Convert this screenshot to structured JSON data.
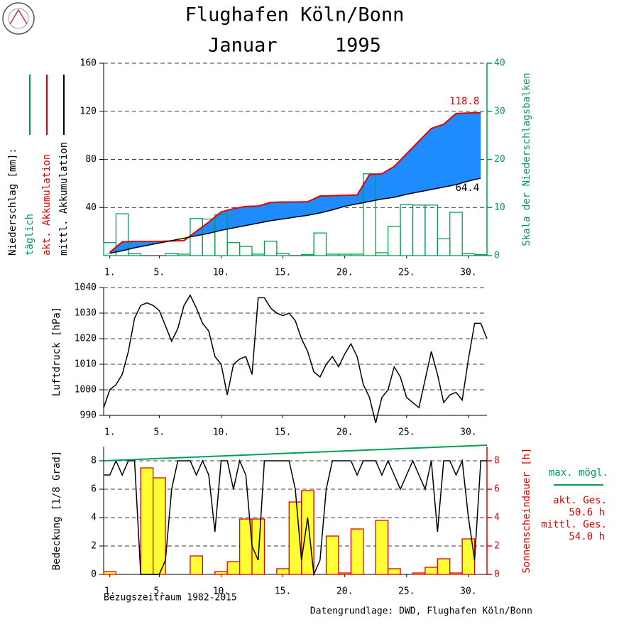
{
  "title": [
    "Flughafen Köln/Bonn",
    "Januar     1995"
  ],
  "footer": {
    "left": "Bezugszeitraum 1982-2015",
    "right": "Datengrundlage: DWD, Flughafen Köln/Bonn"
  },
  "chart_data": [
    {
      "type": "combo",
      "ylabel": "Niederschlag [mm]:",
      "y2label": "Skala der Niederschlagsbalken",
      "y2color": "#00a050",
      "xlim": [
        0.5,
        31.5
      ],
      "xticks": [
        {
          "value": 1,
          "label": "1."
        },
        {
          "value": 5,
          "label": "5."
        },
        {
          "value": 10,
          "label": "10."
        },
        {
          "value": 15,
          "label": "15."
        },
        {
          "value": 20,
          "label": "20."
        },
        {
          "value": 25,
          "label": "25."
        },
        {
          "value": 30,
          "label": "30."
        }
      ],
      "ylim": [
        0,
        160
      ],
      "yticks": [
        40,
        80,
        120,
        160
      ],
      "y2lim": [
        0,
        40
      ],
      "y2ticks": [
        0,
        10,
        20,
        30,
        40
      ],
      "grid": true,
      "legend": "left",
      "area_colors": {
        "above": "#1e8cff",
        "below": "#ffff00"
      },
      "series": [
        {
          "name": "täglich",
          "kind": "bar",
          "axis": "y2",
          "color": "#00a050",
          "fill": "none",
          "x": [
            1,
            2,
            3,
            4,
            5,
            6,
            7,
            8,
            9,
            10,
            11,
            12,
            13,
            14,
            15,
            16,
            17,
            18,
            19,
            20,
            21,
            22,
            23,
            24,
            25,
            26,
            27,
            28,
            29,
            30,
            31
          ],
          "values": [
            2.7,
            8.7,
            0.4,
            0,
            0,
            0.4,
            0.3,
            7.7,
            7.6,
            8.5,
            2.7,
            1.9,
            0.3,
            3.0,
            0.4,
            0,
            0.2,
            4.7,
            0.3,
            0.3,
            0.3,
            17.0,
            0.6,
            6.1,
            10.6,
            10.5,
            10.5,
            3.5,
            9.0,
            0.4,
            0.2
          ]
        },
        {
          "name": "akt. Akkumulation",
          "kind": "line",
          "color": "#e00000",
          "end_label": "above",
          "x": [
            1,
            2,
            3,
            4,
            5,
            6,
            7,
            8,
            9,
            10,
            11,
            12,
            13,
            14,
            15,
            16,
            17,
            18,
            19,
            20,
            21,
            22,
            23,
            24,
            25,
            26,
            27,
            28,
            29,
            30,
            31
          ],
          "values": [
            2.7,
            11.4,
            11.8,
            11.8,
            11.8,
            12.2,
            12.5,
            20.2,
            27.8,
            36.3,
            39.0,
            40.9,
            41.2,
            44.2,
            44.6,
            44.6,
            44.8,
            49.5,
            49.8,
            50.1,
            50.4,
            67.4,
            68.0,
            74.1,
            84.7,
            95.2,
            105.7,
            109.2,
            118.2,
            118.6,
            118.8
          ]
        },
        {
          "name": "mittl. Akkumulation",
          "kind": "line",
          "color": "#000000",
          "end_label": "below",
          "x": [
            1,
            2,
            3,
            4,
            5,
            6,
            7,
            8,
            9,
            10,
            11,
            12,
            13,
            14,
            15,
            16,
            17,
            18,
            19,
            20,
            21,
            22,
            23,
            24,
            25,
            26,
            27,
            28,
            29,
            30,
            31
          ],
          "values": [
            2,
            4,
            6.5,
            8.5,
            10.5,
            12.5,
            14.5,
            16.5,
            18.5,
            21,
            23,
            25,
            27,
            29,
            30.5,
            32,
            33.5,
            35.5,
            38,
            41,
            43,
            45,
            47,
            48.5,
            51,
            53,
            55,
            57,
            59,
            62,
            64.4
          ]
        }
      ]
    },
    {
      "type": "line",
      "ylabel": "Luftdruck [hPa]",
      "xlim": [
        0.5,
        31.5
      ],
      "xticks": [
        {
          "value": 1,
          "label": "1."
        },
        {
          "value": 5,
          "label": "5."
        },
        {
          "value": 10,
          "label": "10."
        },
        {
          "value": 15,
          "label": "15."
        },
        {
          "value": 20,
          "label": "20."
        },
        {
          "value": 25,
          "label": "25."
        },
        {
          "value": 30,
          "label": "30."
        }
      ],
      "ylim": [
        990,
        1040
      ],
      "yticks": [
        990,
        1000,
        1010,
        1020,
        1030,
        1040
      ],
      "grid": true,
      "series": [
        {
          "kind": "line",
          "color": "#000000",
          "x": [
            0.5,
            1,
            1.5,
            2,
            2.5,
            3,
            3.5,
            4,
            4.5,
            5,
            5.5,
            6,
            6.5,
            7,
            7.5,
            8,
            8.5,
            9,
            9.5,
            10,
            10.5,
            11,
            11.5,
            12,
            12.5,
            13,
            13.5,
            14,
            14.5,
            15,
            15.5,
            16,
            16.5,
            17,
            17.5,
            18,
            18.5,
            19,
            19.5,
            20,
            20.5,
            21,
            21.5,
            22,
            22.5,
            23,
            23.5,
            24,
            24.5,
            25,
            25.5,
            26,
            26.5,
            27,
            27.5,
            28,
            28.5,
            29,
            29.5,
            30,
            30.5,
            31,
            31.5
          ],
          "values": [
            993,
            1000,
            1002,
            1006,
            1015,
            1028,
            1033,
            1034,
            1033,
            1031,
            1025,
            1019,
            1024,
            1033,
            1037,
            1032,
            1026,
            1023,
            1013,
            1010,
            998,
            1010,
            1012,
            1013,
            1006,
            1036,
            1036,
            1032,
            1030,
            1029,
            1030,
            1027,
            1020,
            1015,
            1007,
            1005,
            1010,
            1013,
            1009,
            1014,
            1018,
            1013,
            1002,
            997,
            987,
            997,
            1000,
            1009,
            1005,
            997,
            995,
            993,
            1004,
            1015,
            1006,
            995,
            998,
            999,
            996,
            1012,
            1026,
            1026,
            1020
          ]
        }
      ]
    },
    {
      "type": "combo",
      "ylabel": "Bedeckung [1/8 Grad]",
      "y2label": "Sonnenscheindauer [h]",
      "y2color": "#e00000",
      "xlim": [
        0.5,
        31.5
      ],
      "xticks": [
        {
          "value": 1,
          "label": "1."
        },
        {
          "value": 5,
          "label": "5."
        },
        {
          "value": 10,
          "label": "10."
        },
        {
          "value": 15,
          "label": "15."
        },
        {
          "value": 20,
          "label": "20."
        },
        {
          "value": 25,
          "label": "25."
        },
        {
          "value": 30,
          "label": "30."
        }
      ],
      "ylim": [
        0,
        9
      ],
      "yticks": [
        0,
        2,
        4,
        6,
        8
      ],
      "y2lim": [
        0,
        9
      ],
      "y2ticks": [
        0,
        2,
        4,
        6,
        8
      ],
      "grid": true,
      "legend": "right",
      "annotations": [
        "akt. Ges.",
        "50.6 h",
        "mittl. Ges.",
        "54.0 h"
      ],
      "annotation_color": "#e00000",
      "series": [
        {
          "kind": "bar",
          "axis": "y2",
          "color": "#e00000",
          "fill": "#ffff33",
          "x": [
            1,
            2,
            3,
            4,
            5,
            6,
            7,
            8,
            9,
            10,
            11,
            12,
            13,
            14,
            15,
            16,
            17,
            18,
            19,
            20,
            21,
            22,
            23,
            24,
            25,
            26,
            27,
            28,
            29,
            30,
            31
          ],
          "values": [
            0.2,
            0,
            0,
            7.5,
            6.8,
            0,
            0,
            1.3,
            0,
            0.2,
            0.9,
            3.9,
            3.9,
            0,
            0.4,
            5.1,
            5.9,
            0,
            2.7,
            0.1,
            3.2,
            0,
            3.8,
            0.4,
            0,
            0.1,
            0.5,
            1.1,
            0.1,
            2.5,
            0
          ]
        },
        {
          "kind": "line",
          "color": "#000000",
          "x": [
            0.5,
            1,
            1.5,
            2,
            2.5,
            3,
            3.5,
            4,
            4.5,
            5,
            5.5,
            6,
            6.5,
            7,
            7.5,
            8,
            8.5,
            9,
            9.5,
            10,
            10.5,
            11,
            11.5,
            12,
            12.5,
            13,
            13.5,
            14,
            14.5,
            15,
            15.5,
            16,
            16.5,
            17,
            17.5,
            18,
            18.5,
            19,
            19.5,
            20,
            20.5,
            21,
            21.5,
            22,
            22.5,
            23,
            23.5,
            24,
            24.5,
            25,
            25.5,
            26,
            26.5,
            27,
            27.5,
            28,
            28.5,
            29,
            29.5,
            30,
            30.5,
            31,
            31.5
          ],
          "values": [
            7,
            7,
            8,
            7,
            8,
            8,
            0,
            0,
            0,
            0,
            1,
            6,
            8,
            8,
            8,
            7,
            8,
            7,
            3,
            8,
            8,
            6,
            8,
            7,
            2,
            1,
            8,
            8,
            8,
            8,
            8,
            6,
            1,
            4,
            0,
            1,
            6,
            8,
            8,
            8,
            8,
            7,
            8,
            8,
            8,
            7,
            8,
            7,
            6,
            7,
            8,
            7,
            6,
            8,
            3,
            8,
            8,
            7,
            8,
            4,
            1,
            8,
            8
          ]
        },
        {
          "name": "max. mögl.",
          "kind": "line",
          "axis": "y2",
          "color": "#00a050",
          "x": [
            0.5,
            31.5
          ],
          "values": [
            8.0,
            9.1
          ]
        }
      ]
    }
  ]
}
